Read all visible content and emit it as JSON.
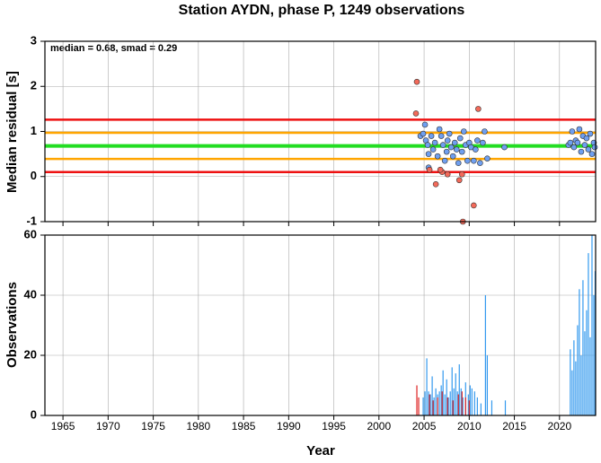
{
  "chart_data": [
    {
      "type": "scatter",
      "title": "Station AYDN, phase P, 1249 observations",
      "ylabel": "Median residual [s]",
      "annotation": "median = 0.68, smad = 0.29",
      "xlim": [
        1963,
        2024
      ],
      "ylim": [
        -1,
        3
      ],
      "yticks": [
        -1,
        0,
        1,
        2,
        3
      ],
      "grid": true,
      "hlines": [
        {
          "value": 1.26,
          "color": "#ee1111"
        },
        {
          "value": 0.97,
          "color": "#ffa500"
        },
        {
          "value": 0.68,
          "color": "#22dd22"
        },
        {
          "value": 0.39,
          "color": "#ffa500"
        },
        {
          "value": 0.1,
          "color": "#ee1111"
        }
      ],
      "series": [
        {
          "color": "#6f9ff0",
          "x": [
            2004.6,
            2004.9,
            2005.1,
            2005.2,
            2005.4,
            2005.5,
            2005.5,
            2005.8,
            2006.0,
            2006.2,
            2006.5,
            2006.7,
            2006.9,
            2007.1,
            2007.3,
            2007.5,
            2007.6,
            2007.8,
            2008.0,
            2008.2,
            2008.4,
            2008.6,
            2008.8,
            2009.0,
            2009.2,
            2009.4,
            2009.6,
            2009.8,
            2010.0,
            2010.2,
            2010.5,
            2010.7,
            2010.9,
            2011.2,
            2011.5,
            2011.7,
            2012.0,
            2013.9,
            2021.0,
            2021.2,
            2021.4,
            2021.6,
            2021.8,
            2022.0,
            2022.2,
            2022.4,
            2022.6,
            2022.8,
            2023.0,
            2023.2,
            2023.4,
            2023.6,
            2023.8,
            2023.9
          ],
          "values": [
            0.9,
            0.95,
            1.15,
            0.8,
            0.7,
            0.5,
            0.2,
            0.9,
            0.6,
            0.75,
            0.45,
            1.05,
            0.9,
            0.7,
            0.35,
            0.55,
            0.8,
            0.95,
            0.65,
            0.45,
            0.75,
            0.6,
            0.3,
            0.85,
            0.55,
            1.0,
            0.7,
            0.35,
            0.75,
            0.65,
            0.35,
            0.6,
            0.8,
            0.3,
            0.75,
            1.0,
            0.4,
            0.65,
            0.7,
            0.75,
            1.0,
            0.65,
            0.8,
            0.75,
            1.05,
            0.55,
            0.9,
            0.7,
            0.85,
            0.6,
            0.95,
            0.5,
            0.75,
            0.65
          ]
        },
        {
          "color": "#f36a5a",
          "x": [
            2004.2,
            2004.1,
            2011.0,
            2006.3,
            2010.5,
            2009.3,
            2008.9,
            2009.2,
            2007.0,
            2007.6,
            2005.6,
            2006.8
          ],
          "values": [
            2.1,
            1.4,
            1.5,
            -0.17,
            -0.64,
            -1.0,
            -0.08,
            0.05,
            0.1,
            0.05,
            0.15,
            0.15
          ]
        }
      ]
    },
    {
      "type": "bar",
      "ylabel": "Observations",
      "xlabel": "Year",
      "xlim": [
        1963,
        2024
      ],
      "ylim": [
        0,
        60
      ],
      "xticks": [
        1965,
        1970,
        1975,
        1980,
        1985,
        1990,
        1995,
        2000,
        2005,
        2010,
        2015,
        2020
      ],
      "yticks": [
        0,
        20,
        40,
        60
      ],
      "grid": true,
      "series": [
        {
          "color": "#3399ee",
          "x": [
            2004.9,
            2005.1,
            2005.3,
            2005.5,
            2005.7,
            2005.9,
            2006.1,
            2006.3,
            2006.5,
            2006.7,
            2006.9,
            2007.1,
            2007.3,
            2007.5,
            2007.7,
            2007.9,
            2008.1,
            2008.3,
            2008.5,
            2008.7,
            2008.9,
            2009.1,
            2009.3,
            2009.6,
            2009.9,
            2010.1,
            2010.3,
            2010.6,
            2010.9,
            2011.3,
            2011.8,
            2012.0,
            2012.5,
            2014.0,
            2021.2,
            2021.4,
            2021.6,
            2021.8,
            2022.0,
            2022.2,
            2022.4,
            2022.6,
            2022.8,
            2023.0,
            2023.2,
            2023.4,
            2023.6,
            2023.8,
            2023.95
          ],
          "values": [
            6,
            8,
            19,
            8,
            7,
            13,
            6,
            9,
            7,
            8,
            10,
            15,
            7,
            12,
            6,
            8,
            16,
            9,
            14,
            8,
            17,
            9,
            6,
            11,
            7,
            10,
            9,
            8,
            6,
            4,
            40,
            20,
            5,
            5,
            22,
            15,
            25,
            18,
            30,
            42,
            20,
            45,
            28,
            35,
            54,
            26,
            60,
            40,
            48
          ]
        },
        {
          "color": "#dd2222",
          "x": [
            2004.2,
            2004.4,
            2005.6,
            2006.0,
            2006.5,
            2007.0,
            2007.6,
            2008.2,
            2008.8,
            2009.2,
            2009.6,
            2010.0
          ],
          "values": [
            10,
            6,
            7,
            5,
            6,
            8,
            6,
            5,
            7,
            8,
            6,
            5
          ]
        }
      ]
    }
  ]
}
